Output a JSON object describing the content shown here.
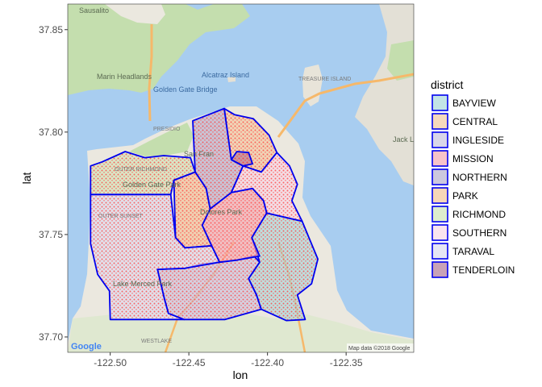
{
  "chart_data": {
    "type": "scatter",
    "title": "",
    "xlabel": "lon",
    "ylabel": "lat",
    "xlim": [
      -122.527,
      -122.307
    ],
    "ylim": [
      37.6925,
      37.8625
    ],
    "x_ticks": [
      -122.5,
      -122.45,
      -122.4,
      -122.35
    ],
    "x_tick_labels": [
      "-122.50",
      "-122.45",
      "-122.40",
      "-122.35"
    ],
    "y_ticks": [
      37.7,
      37.75,
      37.8,
      37.85
    ],
    "y_tick_labels": [
      "37.70",
      "37.75",
      "37.80",
      "37.85"
    ],
    "grid": false,
    "legend_title": "district",
    "legend_position": "right",
    "point_color": "#ff3333",
    "boundary_color": "#0000ee",
    "series": [
      {
        "name": "BAYVIEW",
        "fill": "#a8d8dc",
        "polygon": [
          [
            -122.4005,
            37.7605
          ],
          [
            -122.378,
            37.7565
          ],
          [
            -122.368,
            37.738
          ],
          [
            -122.372,
            37.726
          ],
          [
            -122.381,
            37.7205
          ],
          [
            -122.376,
            37.7085
          ],
          [
            -122.388,
            37.708
          ],
          [
            -122.404,
            37.7135
          ],
          [
            -122.407,
            37.7205
          ],
          [
            -122.412,
            37.7285
          ],
          [
            -122.405,
            37.7365
          ],
          [
            -122.41,
            37.7485
          ],
          [
            -122.4005,
            37.7605
          ]
        ]
      },
      {
        "name": "CENTRAL",
        "fill": "#f2c9a0",
        "polygon": [
          [
            -122.4275,
            37.8115
          ],
          [
            -122.421,
            37.8085
          ],
          [
            -122.409,
            37.8065
          ],
          [
            -122.399,
            37.7985
          ],
          [
            -122.394,
            37.79
          ],
          [
            -122.404,
            37.7805
          ],
          [
            -122.4155,
            37.7835
          ],
          [
            -122.423,
            37.7865
          ],
          [
            -122.4275,
            37.8115
          ]
        ]
      },
      {
        "name": "INGLESIDE",
        "fill": "#c9c5e0",
        "polygon": [
          [
            -122.47,
            37.733
          ],
          [
            -122.4525,
            37.7335
          ],
          [
            -122.442,
            37.7355
          ],
          [
            -122.4305,
            37.7365
          ],
          [
            -122.4195,
            37.7375
          ],
          [
            -122.4085,
            37.7395
          ],
          [
            -122.405,
            37.7365
          ],
          [
            -122.412,
            37.7285
          ],
          [
            -122.407,
            37.7205
          ],
          [
            -122.404,
            37.7135
          ],
          [
            -122.427,
            37.7085
          ],
          [
            -122.453,
            37.7085
          ],
          [
            -122.463,
            37.7115
          ],
          [
            -122.4655,
            37.7185
          ],
          [
            -122.47,
            37.733
          ]
        ]
      },
      {
        "name": "MISSION",
        "fill": "#f4a9b2",
        "polygon": [
          [
            -122.4415,
            37.7545
          ],
          [
            -122.4365,
            37.7625
          ],
          [
            -122.423,
            37.7705
          ],
          [
            -122.4095,
            37.7725
          ],
          [
            -122.4025,
            37.7665
          ],
          [
            -122.4005,
            37.7605
          ],
          [
            -122.41,
            37.7485
          ],
          [
            -122.405,
            37.7395
          ],
          [
            -122.4195,
            37.7375
          ],
          [
            -122.4305,
            37.7365
          ],
          [
            -122.4355,
            37.7445
          ],
          [
            -122.4415,
            37.7545
          ]
        ]
      },
      {
        "name": "NORTHERN",
        "fill": "#b7b0d0",
        "polygon": [
          [
            -122.4475,
            37.8055
          ],
          [
            -122.4275,
            37.8115
          ],
          [
            -122.423,
            37.7865
          ],
          [
            -122.4155,
            37.7835
          ],
          [
            -122.423,
            37.7705
          ],
          [
            -122.4365,
            37.7625
          ],
          [
            -122.439,
            37.7725
          ],
          [
            -122.446,
            37.7805
          ],
          [
            -122.4475,
            37.8055
          ]
        ]
      },
      {
        "name": "PARK",
        "fill": "#f2c49a",
        "polygon": [
          [
            -122.4595,
            37.7765
          ],
          [
            -122.446,
            37.7805
          ],
          [
            -122.439,
            37.7725
          ],
          [
            -122.4365,
            37.7625
          ],
          [
            -122.4415,
            37.7545
          ],
          [
            -122.4355,
            37.7445
          ],
          [
            -122.4525,
            37.7435
          ],
          [
            -122.4585,
            37.7485
          ],
          [
            -122.4595,
            37.7765
          ]
        ]
      },
      {
        "name": "RICHMOND",
        "fill": "#cfe6b8",
        "polygon": [
          [
            -122.5125,
            37.7835
          ],
          [
            -122.505,
            37.7855
          ],
          [
            -122.4905,
            37.7905
          ],
          [
            -122.478,
            37.7875
          ],
          [
            -122.466,
            37.7885
          ],
          [
            -122.449,
            37.7875
          ],
          [
            -122.446,
            37.7805
          ],
          [
            -122.4595,
            37.7765
          ],
          [
            -122.4615,
            37.7695
          ],
          [
            -122.5125,
            37.7695
          ],
          [
            -122.5125,
            37.7835
          ]
        ]
      },
      {
        "name": "SOUTHERN",
        "fill": "#f7d8e8",
        "polygon": [
          [
            -122.4155,
            37.7835
          ],
          [
            -122.404,
            37.7805
          ],
          [
            -122.394,
            37.79
          ],
          [
            -122.386,
            37.7835
          ],
          [
            -122.381,
            37.7745
          ],
          [
            -122.3845,
            37.7665
          ],
          [
            -122.378,
            37.7565
          ],
          [
            -122.4005,
            37.7605
          ],
          [
            -122.4025,
            37.7665
          ],
          [
            -122.4095,
            37.7725
          ],
          [
            -122.423,
            37.7705
          ],
          [
            -122.4155,
            37.7835
          ]
        ]
      },
      {
        "name": "TARAVAL",
        "fill": "#dcdcf0",
        "polygon": [
          [
            -122.5125,
            37.7695
          ],
          [
            -122.4615,
            37.7695
          ],
          [
            -122.4585,
            37.7485
          ],
          [
            -122.4525,
            37.7435
          ],
          [
            -122.4355,
            37.7445
          ],
          [
            -122.4305,
            37.7365
          ],
          [
            -122.4525,
            37.7335
          ],
          [
            -122.47,
            37.733
          ],
          [
            -122.4655,
            37.7185
          ],
          [
            -122.463,
            37.7115
          ],
          [
            -122.453,
            37.7085
          ],
          [
            -122.5,
            37.7085
          ],
          [
            -122.5005,
            37.7225
          ],
          [
            -122.508,
            37.7305
          ],
          [
            -122.5125,
            37.7455
          ],
          [
            -122.5125,
            37.7695
          ]
        ]
      },
      {
        "name": "TENDERLOIN",
        "fill": "#b27a98",
        "polygon": [
          [
            -122.423,
            37.7865
          ],
          [
            -122.4155,
            37.7835
          ],
          [
            -122.4095,
            37.7845
          ],
          [
            -122.412,
            37.79
          ],
          [
            -122.4195,
            37.7905
          ],
          [
            -122.423,
            37.7865
          ]
        ]
      }
    ]
  },
  "map": {
    "place_labels": [
      "Sausalito",
      "Marin Headlands",
      "Alcatraz Island",
      "Golden Gate Bridge",
      "TREASURE ISLAND",
      "PRESIDIO",
      "San Fran",
      "Golden Gate Park",
      "OUTER SUNSET",
      "OUTER RICHMOND",
      "Dolores Park",
      "Lake Merced Park",
      "WESTLAKE",
      "Jack L"
    ],
    "credit_left": "Google",
    "credit_right": "Map data ©2018 Google"
  }
}
